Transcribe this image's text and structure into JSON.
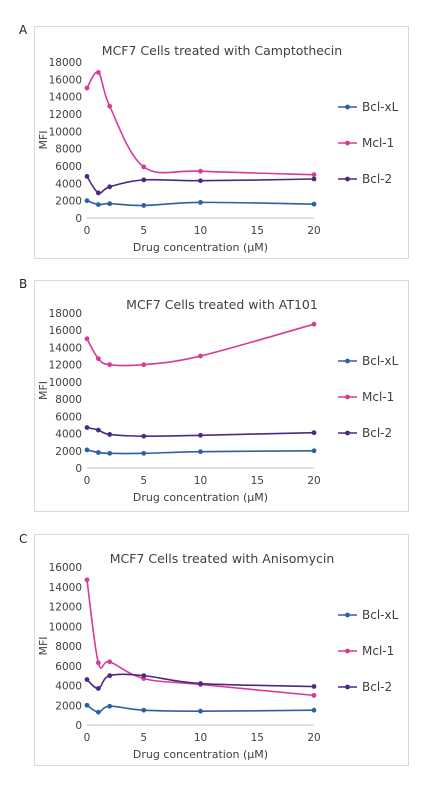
{
  "panels": [
    {
      "letter": "A"
    },
    {
      "letter": "B"
    },
    {
      "letter": "C"
    }
  ],
  "chart_data": [
    {
      "type": "line",
      "title": "MCF7 Cells treated with Camptothecin",
      "xlabel": "Drug concentration (µM)",
      "ylabel": "MFI",
      "xlim": [
        0,
        20
      ],
      "xticks": [
        0,
        5,
        10,
        15,
        20
      ],
      "ylim": [
        0,
        18000
      ],
      "yticks": [
        0,
        2000,
        4000,
        6000,
        8000,
        10000,
        12000,
        14000,
        16000,
        18000
      ],
      "grid": false,
      "legend": "right",
      "x": [
        0,
        1,
        2,
        5,
        10,
        20
      ],
      "series": [
        {
          "name": "Bcl-xL",
          "color": "#2e5fa6",
          "values": [
            2000,
            1550,
            1650,
            1450,
            1800,
            1600
          ]
        },
        {
          "name": "Mcl-1",
          "color": "#d63c97",
          "values": [
            15000,
            16800,
            12900,
            5900,
            5400,
            5000
          ]
        },
        {
          "name": "Bcl-2",
          "color": "#4b2a82",
          "values": [
            4800,
            2900,
            3600,
            4400,
            4300,
            4500
          ]
        }
      ]
    },
    {
      "type": "line",
      "title": "MCF7 Cells treated with AT101",
      "xlabel": "Drug concentration (µM)",
      "ylabel": "MFI",
      "xlim": [
        0,
        20
      ],
      "xticks": [
        0,
        5,
        10,
        15,
        20
      ],
      "ylim": [
        0,
        18000
      ],
      "yticks": [
        0,
        2000,
        4000,
        6000,
        8000,
        10000,
        12000,
        14000,
        16000,
        18000
      ],
      "grid": false,
      "legend": "right",
      "x": [
        0,
        1,
        2,
        5,
        10,
        20
      ],
      "series": [
        {
          "name": "Bcl-xL",
          "color": "#2e5fa6",
          "values": [
            2100,
            1800,
            1700,
            1700,
            1900,
            2000
          ]
        },
        {
          "name": "Mcl-1",
          "color": "#d63c97",
          "values": [
            15000,
            12700,
            12000,
            12000,
            13000,
            16700
          ]
        },
        {
          "name": "Bcl-2",
          "color": "#4b2a82",
          "values": [
            4700,
            4400,
            3900,
            3700,
            3800,
            4100
          ]
        }
      ]
    },
    {
      "type": "line",
      "title": "MCF7 Cells treated with Anisomycin",
      "xlabel": "Drug concentration (µM)",
      "ylabel": "MFI",
      "xlim": [
        0,
        20
      ],
      "xticks": [
        0,
        5,
        10,
        15,
        20
      ],
      "ylim": [
        0,
        16000
      ],
      "yticks": [
        0,
        2000,
        4000,
        6000,
        8000,
        10000,
        12000,
        14000,
        16000
      ],
      "grid": false,
      "legend": "right",
      "x": [
        0,
        1,
        2,
        5,
        10,
        20
      ],
      "series": [
        {
          "name": "Bcl-xL",
          "color": "#2e5fa6",
          "values": [
            2000,
            1300,
            1900,
            1500,
            1400,
            1500
          ]
        },
        {
          "name": "Mcl-1",
          "color": "#d63c97",
          "values": [
            14700,
            6300,
            6400,
            4700,
            4100,
            3000
          ]
        },
        {
          "name": "Bcl-2",
          "color": "#4b2a82",
          "values": [
            4600,
            3700,
            5000,
            5000,
            4200,
            3900
          ]
        }
      ]
    }
  ]
}
